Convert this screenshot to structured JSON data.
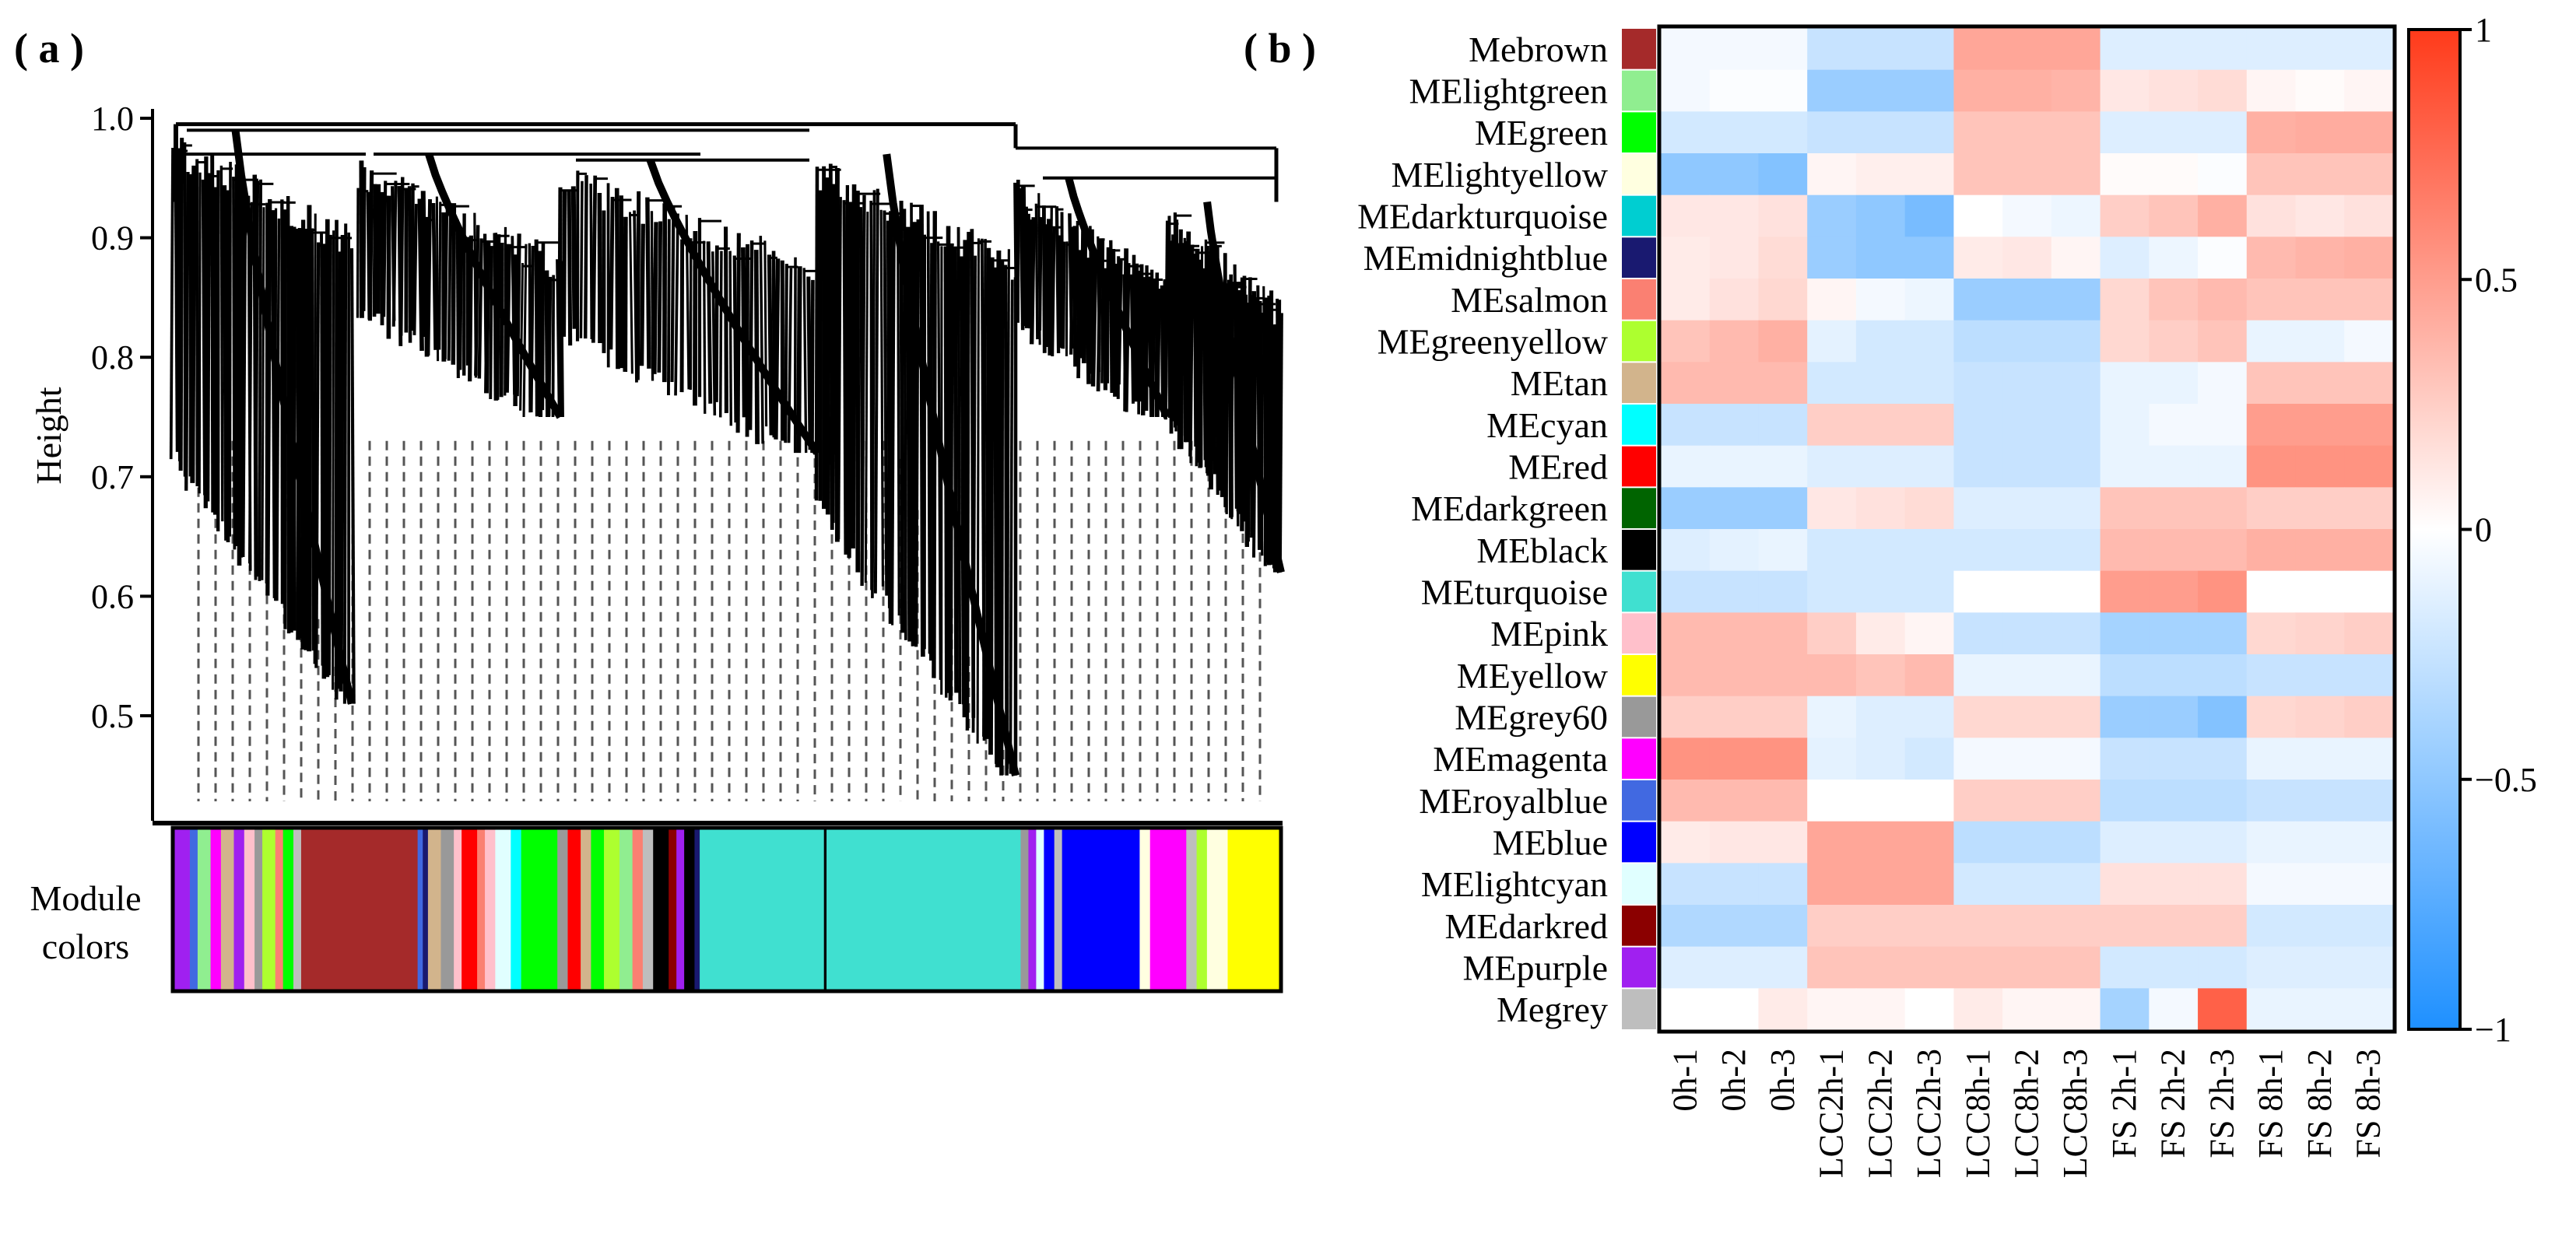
{
  "panel_a": {
    "label": "( a )",
    "ylabel": "Height",
    "module_label_line1": "Module",
    "module_label_line2": "colors"
  },
  "panel_b": {
    "label": "( b )"
  },
  "colors": {
    "brown": "#a52a2a",
    "lightgreen": "#90ee90",
    "green": "#00ff00",
    "lightyellow": "#ffffe0",
    "darkturquoise": "#00ced1",
    "midnightblue": "#191970",
    "salmon": "#fa8072",
    "greenyellow": "#adff2f",
    "tan": "#d2b48c",
    "cyan": "#00ffff",
    "red": "#ff0000",
    "darkgreen": "#006400",
    "black": "#000000",
    "turquoise": "#40e0d0",
    "pink": "#ffc0cb",
    "yellow": "#ffff00",
    "grey60": "#999999",
    "magenta": "#ff00ff",
    "royalblue": "#4169e1",
    "blue": "#0000ff",
    "lightcyan": "#e0ffff",
    "darkred": "#8b0000",
    "purple": "#a020f0",
    "grey": "#bebebe"
  },
  "chart_data": [
    {
      "type": "dendrogram",
      "title": "",
      "ylabel": "Height",
      "ylim": [
        0.42,
        1.0
      ],
      "yticks": [
        0.5,
        0.6,
        0.7,
        0.8,
        0.9,
        1.0
      ],
      "ytick_labels": [
        "0.5",
        "0.6",
        "0.7",
        "0.8",
        "0.9",
        "1.0"
      ],
      "merge_heights": {
        "root": 0.995,
        "left_main": 0.99,
        "right_cluster": 0.975,
        "sub_left": 0.97,
        "sub_mid1": 0.97,
        "sub_mid2": 0.965,
        "sub_right1": 0.95,
        "sub_right2": 0.93
      },
      "branches": [
        {
          "name": "left-steep",
          "top": 0.99,
          "bottom": 0.51
        },
        {
          "name": "mid-1",
          "top": 0.97,
          "bottom": 0.75
        },
        {
          "name": "mid-2",
          "top": 0.965,
          "bottom": 0.72
        },
        {
          "name": "center-long",
          "top": 0.97,
          "bottom": 0.45
        },
        {
          "name": "right-1",
          "top": 0.95,
          "bottom": 0.75
        },
        {
          "name": "right-2",
          "top": 0.93,
          "bottom": 0.62
        }
      ],
      "module_color_bar": [
        {
          "color": "purple",
          "w": 6
        },
        {
          "color": "royalblue",
          "w": 3
        },
        {
          "color": "lightgreen",
          "w": 5
        },
        {
          "color": "magenta",
          "w": 4
        },
        {
          "color": "tan",
          "w": 5
        },
        {
          "color": "purple",
          "w": 4
        },
        {
          "color": "pink",
          "w": 4
        },
        {
          "color": "grey60",
          "w": 3
        },
        {
          "color": "greenyellow",
          "w": 5
        },
        {
          "color": "salmon",
          "w": 3
        },
        {
          "color": "green",
          "w": 4
        },
        {
          "color": "grey",
          "w": 3
        },
        {
          "color": "brown",
          "w": 45
        },
        {
          "color": "royalblue",
          "w": 2
        },
        {
          "color": "midnightblue",
          "w": 2
        },
        {
          "color": "tan",
          "w": 5
        },
        {
          "color": "grey60",
          "w": 5
        },
        {
          "color": "pink",
          "w": 3
        },
        {
          "color": "red",
          "w": 6
        },
        {
          "color": "salmon",
          "w": 3
        },
        {
          "color": "pink",
          "w": 4
        },
        {
          "color": "lightcyan",
          "w": 6
        },
        {
          "color": "cyan",
          "w": 4
        },
        {
          "color": "green",
          "w": 14
        },
        {
          "color": "grey60",
          "w": 4
        },
        {
          "color": "red",
          "w": 5
        },
        {
          "color": "tan",
          "w": 4
        },
        {
          "color": "green",
          "w": 5
        },
        {
          "color": "greenyellow",
          "w": 6
        },
        {
          "color": "lightgreen",
          "w": 5
        },
        {
          "color": "salmon",
          "w": 4
        },
        {
          "color": "grey",
          "w": 4
        },
        {
          "color": "black",
          "w": 6
        },
        {
          "color": "darkred",
          "w": 3
        },
        {
          "color": "purple",
          "w": 3
        },
        {
          "color": "black",
          "w": 4
        },
        {
          "color": "midnightblue",
          "w": 2
        },
        {
          "color": "turquoise",
          "w": 48
        },
        {
          "color": "black",
          "w": 1
        },
        {
          "color": "turquoise",
          "w": 75
        },
        {
          "color": "grey60",
          "w": 3
        },
        {
          "color": "purple",
          "w": 3
        },
        {
          "color": "lightcyan",
          "w": 3
        },
        {
          "color": "blue",
          "w": 4
        },
        {
          "color": "grey",
          "w": 3
        },
        {
          "color": "blue",
          "w": 30
        },
        {
          "color": "lightyellow",
          "w": 4
        },
        {
          "color": "magenta",
          "w": 14
        },
        {
          "color": "grey",
          "w": 4
        },
        {
          "color": "greenyellow",
          "w": 4
        },
        {
          "color": "lightyellow",
          "w": 8
        },
        {
          "color": "yellow",
          "w": 20
        }
      ]
    },
    {
      "type": "heatmap",
      "title": "",
      "rows": [
        "Mebrown",
        "MElightgreen",
        "MEgreen",
        "MElightyellow",
        "MEdarkturquoise",
        "MEmidnightblue",
        "MEsalmon",
        "MEgreenyellow",
        "MEtan",
        "MEcyan",
        "MEred",
        "MEdarkgreen",
        "MEblack",
        "MEturquoise",
        "MEpink",
        "MEyellow",
        "MEgrey60",
        "MEmagenta",
        "MEroyalblue",
        "MEblue",
        "MElightcyan",
        "MEdarkred",
        "MEpurple",
        "Megrey"
      ],
      "row_colors": [
        "brown",
        "lightgreen",
        "green",
        "lightyellow",
        "darkturquoise",
        "midnightblue",
        "salmon",
        "greenyellow",
        "tan",
        "cyan",
        "red",
        "darkgreen",
        "black",
        "turquoise",
        "pink",
        "yellow",
        "grey60",
        "magenta",
        "royalblue",
        "blue",
        "lightcyan",
        "darkred",
        "purple",
        "grey"
      ],
      "columns": [
        "0h-1",
        "0h-2",
        "0h-3",
        "LCC2h-1",
        "LCC2h-2",
        "LCC2h-3",
        "LCC8h-1",
        "LCC8h-2",
        "LCC8h-3",
        "FS 2h-1",
        "FS 2h-2",
        "FS 2h-3",
        "FS 8h-1",
        "FS 8h-2",
        "FS 8h-3"
      ],
      "values": [
        [
          -0.05,
          -0.05,
          -0.05,
          -0.25,
          -0.25,
          -0.25,
          0.45,
          0.45,
          0.45,
          -0.15,
          -0.15,
          -0.15,
          -0.15,
          -0.15,
          -0.15
        ],
        [
          -0.05,
          -0.02,
          -0.02,
          -0.45,
          -0.45,
          -0.45,
          0.4,
          0.4,
          0.38,
          0.12,
          0.15,
          0.18,
          0.05,
          0.02,
          0.05
        ],
        [
          -0.2,
          -0.2,
          -0.2,
          -0.25,
          -0.25,
          -0.25,
          0.3,
          0.3,
          0.3,
          -0.15,
          -0.15,
          -0.15,
          0.4,
          0.42,
          0.42
        ],
        [
          -0.5,
          -0.5,
          -0.55,
          0.05,
          0.08,
          0.08,
          0.3,
          0.3,
          0.3,
          0.02,
          0.02,
          -0.02,
          0.3,
          0.3,
          0.3
        ],
        [
          0.12,
          0.12,
          0.15,
          -0.45,
          -0.5,
          -0.6,
          0.0,
          -0.05,
          -0.08,
          0.25,
          0.3,
          0.4,
          0.15,
          0.12,
          0.15
        ],
        [
          0.1,
          0.12,
          0.18,
          -0.45,
          -0.5,
          -0.5,
          0.1,
          0.12,
          0.05,
          -0.15,
          -0.08,
          -0.02,
          0.35,
          0.38,
          0.4
        ],
        [
          0.1,
          0.15,
          0.2,
          0.05,
          -0.05,
          -0.08,
          -0.45,
          -0.45,
          -0.45,
          0.2,
          0.3,
          0.35,
          0.3,
          0.3,
          0.3
        ],
        [
          0.3,
          0.35,
          0.4,
          -0.12,
          -0.2,
          -0.2,
          -0.3,
          -0.3,
          -0.3,
          0.2,
          0.25,
          0.3,
          -0.1,
          -0.1,
          -0.05
        ],
        [
          0.35,
          0.35,
          0.35,
          -0.2,
          -0.2,
          -0.2,
          -0.25,
          -0.25,
          -0.25,
          -0.1,
          -0.1,
          -0.05,
          0.3,
          0.3,
          0.3
        ],
        [
          -0.25,
          -0.25,
          -0.25,
          0.25,
          0.25,
          0.25,
          -0.25,
          -0.25,
          -0.25,
          -0.1,
          -0.05,
          -0.05,
          0.5,
          0.5,
          0.5
        ],
        [
          -0.1,
          -0.1,
          -0.1,
          -0.15,
          -0.15,
          -0.15,
          -0.25,
          -0.25,
          -0.25,
          -0.1,
          -0.1,
          -0.1,
          0.55,
          0.55,
          0.55
        ],
        [
          -0.45,
          -0.45,
          -0.45,
          0.12,
          0.15,
          0.18,
          -0.15,
          -0.15,
          -0.15,
          0.3,
          0.3,
          0.3,
          0.25,
          0.25,
          0.25
        ],
        [
          -0.15,
          -0.12,
          -0.1,
          -0.2,
          -0.2,
          -0.2,
          -0.2,
          -0.2,
          -0.2,
          0.35,
          0.35,
          0.35,
          0.4,
          0.4,
          0.4
        ],
        [
          -0.25,
          -0.25,
          -0.25,
          -0.2,
          -0.2,
          -0.2,
          0.0,
          0.0,
          0.0,
          0.5,
          0.5,
          0.55,
          0.0,
          0.0,
          0.0
        ],
        [
          0.35,
          0.35,
          0.35,
          0.25,
          0.1,
          0.05,
          -0.25,
          -0.25,
          -0.25,
          -0.4,
          -0.4,
          -0.4,
          0.2,
          0.22,
          0.25
        ],
        [
          0.35,
          0.35,
          0.35,
          0.35,
          0.3,
          0.35,
          -0.1,
          -0.1,
          -0.1,
          -0.3,
          -0.3,
          -0.3,
          -0.25,
          -0.25,
          -0.25
        ],
        [
          0.25,
          0.25,
          0.25,
          -0.1,
          -0.15,
          -0.15,
          0.2,
          0.2,
          0.2,
          -0.45,
          -0.45,
          -0.55,
          0.2,
          0.22,
          0.25
        ],
        [
          0.55,
          0.55,
          0.55,
          -0.12,
          -0.15,
          -0.2,
          -0.05,
          -0.05,
          -0.05,
          -0.25,
          -0.25,
          -0.25,
          -0.1,
          -0.1,
          -0.1
        ],
        [
          0.35,
          0.35,
          0.35,
          0.0,
          0.0,
          0.0,
          0.25,
          0.25,
          0.25,
          -0.3,
          -0.3,
          -0.3,
          -0.25,
          -0.25,
          -0.25
        ],
        [
          0.1,
          0.12,
          0.12,
          0.45,
          0.45,
          0.45,
          -0.3,
          -0.3,
          -0.3,
          -0.15,
          -0.15,
          -0.15,
          -0.1,
          -0.1,
          -0.1
        ],
        [
          -0.25,
          -0.25,
          -0.25,
          0.45,
          0.45,
          0.45,
          -0.2,
          -0.2,
          -0.2,
          0.15,
          0.15,
          0.15,
          -0.05,
          -0.05,
          -0.05
        ],
        [
          -0.35,
          -0.35,
          -0.35,
          0.25,
          0.25,
          0.25,
          0.25,
          0.25,
          0.25,
          0.25,
          0.25,
          0.25,
          -0.2,
          -0.2,
          -0.2
        ],
        [
          -0.15,
          -0.15,
          -0.15,
          0.3,
          0.3,
          0.3,
          0.3,
          0.3,
          0.3,
          -0.2,
          -0.2,
          -0.2,
          -0.15,
          -0.15,
          -0.15
        ],
        [
          0.0,
          0.0,
          0.1,
          0.05,
          0.05,
          0.0,
          0.1,
          0.05,
          0.05,
          -0.4,
          -0.05,
          0.8,
          -0.1,
          -0.1,
          -0.1
        ]
      ],
      "colorbar": {
        "min": -1,
        "max": 1,
        "ticks": [
          1,
          0.5,
          0,
          -0.5,
          -1
        ],
        "tick_labels": [
          "1",
          "0.5",
          "0",
          "−0.5",
          "−1"
        ],
        "low_color": "#1e90ff",
        "mid_color": "#ffffff",
        "high_color": "#ff3a1a"
      }
    }
  ]
}
